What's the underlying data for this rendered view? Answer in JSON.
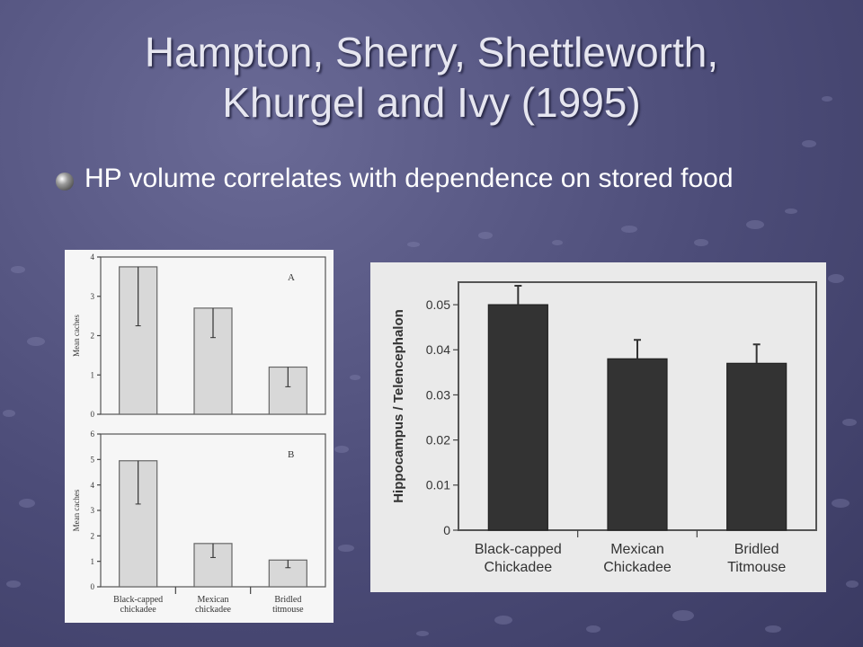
{
  "slide": {
    "title_line1": "Hampton, Sherry, Shettleworth,",
    "title_line2": "Khurgel and Ivy (1995)",
    "bullet": "HP volume correlates with dependence on stored food"
  },
  "chart_data": [
    {
      "type": "bar",
      "panel_label": "A",
      "ylabel": "Mean caches",
      "ylim": [
        0,
        4
      ],
      "yticks": [
        "0",
        "1",
        "2",
        "3",
        "4"
      ],
      "categories": [
        "Black-capped chickadee",
        "Mexican chickadee",
        "Bridled titmouse"
      ],
      "values": [
        3.75,
        2.7,
        1.2
      ],
      "error": [
        1.5,
        0.75,
        0.5
      ],
      "show_category_labels": false
    },
    {
      "type": "bar",
      "panel_label": "B",
      "ylabel": "Mean caches",
      "ylim": [
        0,
        6
      ],
      "yticks": [
        "0",
        "1",
        "2",
        "3",
        "4",
        "5",
        "6"
      ],
      "categories": [
        "Black-capped chickadee",
        "Mexican chickadee",
        "Bridled titmouse"
      ],
      "category_lines": [
        [
          "Black-capped",
          "chickadee"
        ],
        [
          "Mexican",
          "chickadee"
        ],
        [
          "Bridled",
          "titmouse"
        ]
      ],
      "values": [
        4.95,
        1.7,
        1.05
      ],
      "error": [
        1.7,
        0.55,
        0.3
      ],
      "show_category_labels": true
    },
    {
      "type": "bar",
      "ylabel": "Hippocampus / Telencephalon",
      "ylim": [
        0,
        0.055
      ],
      "yticks": [
        "0",
        "0.01",
        "0.02",
        "0.03",
        "0.04",
        "0.05"
      ],
      "categories": [
        "Black-capped Chickadee",
        "Mexican Chickadee",
        "Bridled Titmouse"
      ],
      "category_lines": [
        [
          "Black-capped",
          "Chickadee"
        ],
        [
          "Mexican",
          "Chickadee"
        ],
        [
          "Bridled",
          "Titmouse"
        ]
      ],
      "values": [
        0.05,
        0.038,
        0.037
      ],
      "error": [
        0.0042,
        0.0042,
        0.0042
      ],
      "show_category_labels": true
    }
  ]
}
